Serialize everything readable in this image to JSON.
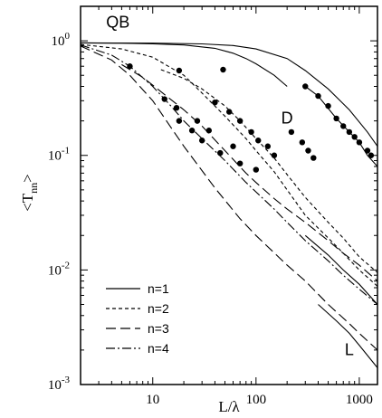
{
  "chart_data": {
    "type": "line",
    "title": "",
    "xlabel": "L/λ",
    "ylabel_base": "<T",
    "ylabel_sub": "nn",
    "ylabel_close": ">",
    "xscale": "log",
    "yscale": "log",
    "xlim": [
      2,
      1500
    ],
    "ylim": [
      0.001,
      2
    ],
    "x_ticks": [
      {
        "value": 10,
        "label": "10"
      },
      {
        "value": 100,
        "label": "100"
      },
      {
        "value": 1000,
        "label": "1000"
      }
    ],
    "y_ticks": [
      {
        "value": 1,
        "base": "10",
        "exp": "0"
      },
      {
        "value": 0.1,
        "base": "10",
        "exp": "-1"
      },
      {
        "value": 0.01,
        "base": "10",
        "exp": "-2"
      },
      {
        "value": 0.001,
        "base": "10",
        "exp": "-3"
      }
    ],
    "legend_position": "bottom-left",
    "region_labels": [
      {
        "text": "QB",
        "x": 4.6,
        "y": 1.3
      },
      {
        "text": "D",
        "x": 200,
        "y": 0.19
      },
      {
        "text": "L",
        "x": 800,
        "y": 0.0018
      }
    ],
    "series": [
      {
        "name": "n=1",
        "dash": "solid",
        "curves": [
          [
            [
              2,
              0.96
            ],
            [
              5,
              0.955
            ],
            [
              10,
              0.94
            ],
            [
              20,
              0.92
            ],
            [
              40,
              0.86
            ],
            [
              60,
              0.78
            ],
            [
              80,
              0.7
            ],
            [
              100,
              0.63
            ],
            [
              150,
              0.5
            ],
            [
              200,
              0.4
            ]
          ],
          [
            [
              2,
              0.96
            ],
            [
              10,
              0.955
            ],
            [
              30,
              0.94
            ],
            [
              60,
              0.91
            ],
            [
              100,
              0.85
            ],
            [
              200,
              0.7
            ],
            [
              300,
              0.55
            ],
            [
              500,
              0.38
            ],
            [
              800,
              0.25
            ],
            [
              1200,
              0.16
            ],
            [
              1500,
              0.12
            ]
          ],
          [
            [
              300,
              0.4
            ],
            [
              400,
              0.33
            ],
            [
              600,
              0.21
            ],
            [
              800,
              0.16
            ],
            [
              1000,
              0.13
            ],
            [
              1200,
              0.1
            ],
            [
              1500,
              0.08
            ]
          ],
          [
            [
              300,
              0.02
            ],
            [
              500,
              0.0135
            ],
            [
              700,
              0.01
            ],
            [
              1000,
              0.0075
            ],
            [
              1500,
              0.005
            ]
          ],
          [
            [
              400,
              0.005
            ],
            [
              600,
              0.0036
            ],
            [
              800,
              0.0028
            ],
            [
              1000,
              0.0022
            ],
            [
              1500,
              0.0014
            ]
          ]
        ]
      },
      {
        "name": "n=2",
        "dash": "4,3",
        "curves": [
          [
            [
              2,
              0.93
            ],
            [
              5,
              0.85
            ],
            [
              10,
              0.72
            ],
            [
              20,
              0.5
            ],
            [
              30,
              0.35
            ],
            [
              50,
              0.22
            ],
            [
              80,
              0.14
            ],
            [
              100,
              0.11
            ],
            [
              150,
              0.072
            ],
            [
              200,
              0.05
            ],
            [
              300,
              0.03
            ],
            [
              500,
              0.019
            ],
            [
              700,
              0.014
            ],
            [
              1000,
              0.01
            ],
            [
              1500,
              0.0072
            ]
          ],
          [
            [
              12,
              0.56
            ],
            [
              20,
              0.47
            ],
            [
              30,
              0.38
            ],
            [
              50,
              0.27
            ],
            [
              70,
              0.2
            ],
            [
              100,
              0.14
            ],
            [
              150,
              0.095
            ],
            [
              200,
              0.068
            ],
            [
              300,
              0.043
            ],
            [
              500,
              0.026
            ],
            [
              700,
              0.019
            ],
            [
              1000,
              0.013
            ],
            [
              1500,
              0.0095
            ]
          ]
        ]
      },
      {
        "name": "n=3",
        "dash": "11,5",
        "curves": [
          [
            [
              2,
              0.9
            ],
            [
              4,
              0.68
            ],
            [
              6,
              0.5
            ],
            [
              10,
              0.3
            ],
            [
              20,
              0.12
            ],
            [
              40,
              0.052
            ],
            [
              70,
              0.028
            ],
            [
              100,
              0.02
            ],
            [
              200,
              0.011
            ],
            [
              300,
              0.008
            ],
            [
              500,
              0.005
            ],
            [
              800,
              0.0034
            ],
            [
              1000,
              0.0028
            ],
            [
              1500,
              0.002
            ]
          ],
          [
            [
              5,
              0.62
            ],
            [
              8,
              0.48
            ],
            [
              12,
              0.36
            ],
            [
              20,
              0.25
            ],
            [
              30,
              0.18
            ],
            [
              50,
              0.11
            ],
            [
              80,
              0.07
            ],
            [
              100,
              0.058
            ],
            [
              150,
              0.042
            ],
            [
              200,
              0.034
            ],
            [
              300,
              0.026
            ],
            [
              500,
              0.018
            ],
            [
              700,
              0.014
            ],
            [
              1000,
              0.011
            ],
            [
              1500,
              0.008
            ]
          ]
        ]
      },
      {
        "name": "n=4",
        "dash": "10,3,2,3",
        "curves": [
          [
            [
              2,
              0.92
            ],
            [
              4,
              0.75
            ],
            [
              6,
              0.6
            ],
            [
              10,
              0.4
            ],
            [
              15,
              0.27
            ],
            [
              20,
              0.2
            ],
            [
              30,
              0.14
            ],
            [
              50,
              0.09
            ],
            [
              80,
              0.058
            ],
            [
              100,
              0.048
            ],
            [
              150,
              0.034
            ],
            [
              200,
              0.026
            ],
            [
              300,
              0.018
            ],
            [
              500,
              0.012
            ],
            [
              700,
              0.009
            ],
            [
              1000,
              0.0068
            ],
            [
              1500,
              0.005
            ]
          ]
        ]
      }
    ],
    "markers": [
      [
        6,
        0.6
      ],
      [
        18,
        0.55
      ],
      [
        48,
        0.56
      ],
      [
        13,
        0.31
      ],
      [
        17,
        0.26
      ],
      [
        27,
        0.2
      ],
      [
        35,
        0.165
      ],
      [
        60,
        0.12
      ],
      [
        18,
        0.2
      ],
      [
        24,
        0.165
      ],
      [
        30,
        0.135
      ],
      [
        45,
        0.105
      ],
      [
        70,
        0.085
      ],
      [
        100,
        0.075
      ],
      [
        40,
        0.29
      ],
      [
        55,
        0.24
      ],
      [
        70,
        0.2
      ],
      [
        90,
        0.16
      ],
      [
        105,
        0.135
      ],
      [
        130,
        0.12
      ],
      [
        150,
        0.1
      ],
      [
        220,
        0.16
      ],
      [
        280,
        0.13
      ],
      [
        320,
        0.11
      ],
      [
        360,
        0.095
      ],
      [
        300,
        0.4
      ],
      [
        400,
        0.33
      ],
      [
        500,
        0.27
      ],
      [
        600,
        0.21
      ],
      [
        700,
        0.18
      ],
      [
        800,
        0.16
      ],
      [
        900,
        0.145
      ],
      [
        1000,
        0.13
      ],
      [
        1200,
        0.11
      ],
      [
        1300,
        0.1
      ]
    ]
  }
}
